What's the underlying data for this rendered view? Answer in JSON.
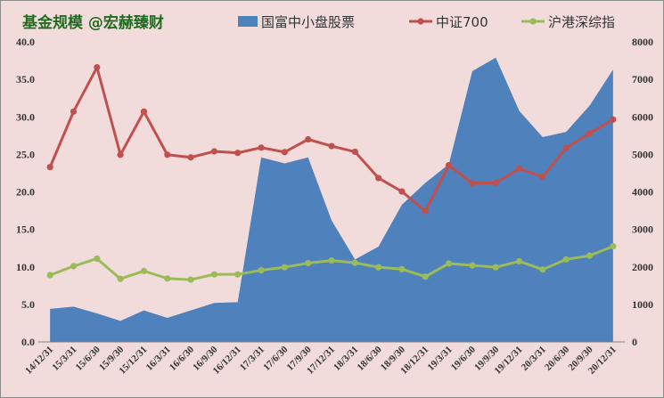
{
  "chart_data": {
    "type": "area+line",
    "title": "基金规模 @宏赫臻财",
    "categories": [
      "14/12/31",
      "15/3/31",
      "15/6/30",
      "15/9/30",
      "15/12/31",
      "16/3/31",
      "16/6/30",
      "16/9/30",
      "16/12/31",
      "17/3/31",
      "17/6/30",
      "17/9/30",
      "17/12/31",
      "18/3/31",
      "18/6/30",
      "18/9/30",
      "18/12/31",
      "19/3/31",
      "19/6/30",
      "19/9/30",
      "19/12/31",
      "20/3/31",
      "20/6/30",
      "20/9/30",
      "20/12/31"
    ],
    "left_axis": {
      "ylim": [
        0,
        40
      ],
      "ticks": [
        "0.0",
        "5.0",
        "10.0",
        "15.0",
        "20.0",
        "25.0",
        "30.0",
        "35.0",
        "40.0"
      ]
    },
    "right_axis": {
      "ylim": [
        0,
        8000
      ],
      "ticks": [
        "0",
        "1000",
        "2000",
        "3000",
        "4000",
        "5000",
        "6000",
        "7000",
        "8000"
      ]
    },
    "series": [
      {
        "name": "国富中小盘股票",
        "type": "area",
        "axis": "left",
        "color": "#4f81bd",
        "values": [
          4.4,
          4.7,
          3.8,
          2.8,
          4.2,
          3.2,
          4.2,
          5.2,
          5.3,
          24.6,
          23.8,
          24.6,
          16.2,
          11.0,
          12.7,
          18.3,
          21.2,
          23.7,
          36.1,
          37.9,
          30.8,
          27.3,
          28.0,
          31.5,
          36.3
        ]
      },
      {
        "name": "中证700",
        "type": "line",
        "axis": "right",
        "color": "#c0504d",
        "values": [
          4660,
          6140,
          7320,
          4990,
          6140,
          4990,
          4920,
          5080,
          5040,
          5180,
          5060,
          5400,
          5220,
          5070,
          4370,
          4010,
          3490,
          4710,
          4230,
          4240,
          4620,
          4400,
          5170,
          5560,
          5930
        ]
      },
      {
        "name": "沪港深综指",
        "type": "line",
        "axis": "right",
        "color": "#9bbb59",
        "values": [
          1780,
          2020,
          2220,
          1680,
          1890,
          1690,
          1660,
          1800,
          1800,
          1910,
          1990,
          2100,
          2170,
          2110,
          1990,
          1940,
          1740,
          2090,
          2040,
          1990,
          2150,
          1930,
          2200,
          2300,
          2550
        ]
      }
    ],
    "legend_position": "top",
    "grid": false
  }
}
